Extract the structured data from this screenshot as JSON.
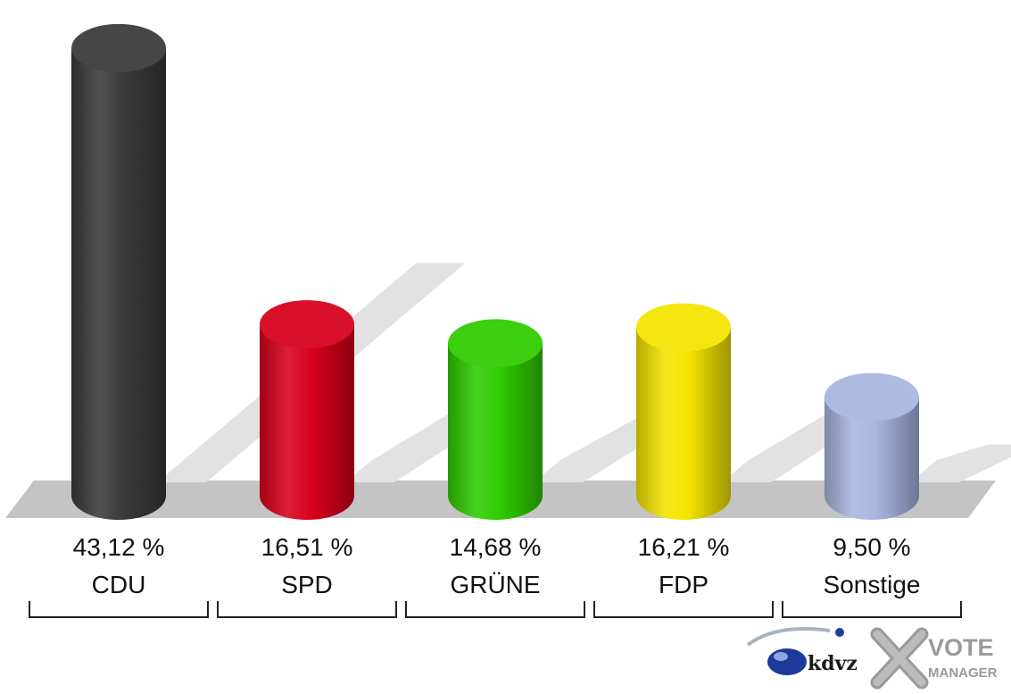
{
  "chart_data": {
    "type": "bar",
    "style": "3d-cylinder",
    "categories": [
      "CDU",
      "SPD",
      "GRÜNE",
      "FDP",
      "Sonstige"
    ],
    "values": [
      43.12,
      16.51,
      14.68,
      16.21,
      9.5
    ],
    "value_labels": [
      "43,12 %",
      "16,51 %",
      "14,68 %",
      "16,21 %",
      "9,50 %"
    ],
    "colors": [
      "#3a3a3a",
      "#d8001c",
      "#2fcc00",
      "#f5e400",
      "#a8b6e0"
    ],
    "unit": "%",
    "ylim": [
      0,
      45
    ],
    "grid": false,
    "legend": "none"
  },
  "branding": {
    "kdvz_label": "kdvz",
    "vote_label": "VOTE",
    "manager_label": "MANAGER"
  }
}
